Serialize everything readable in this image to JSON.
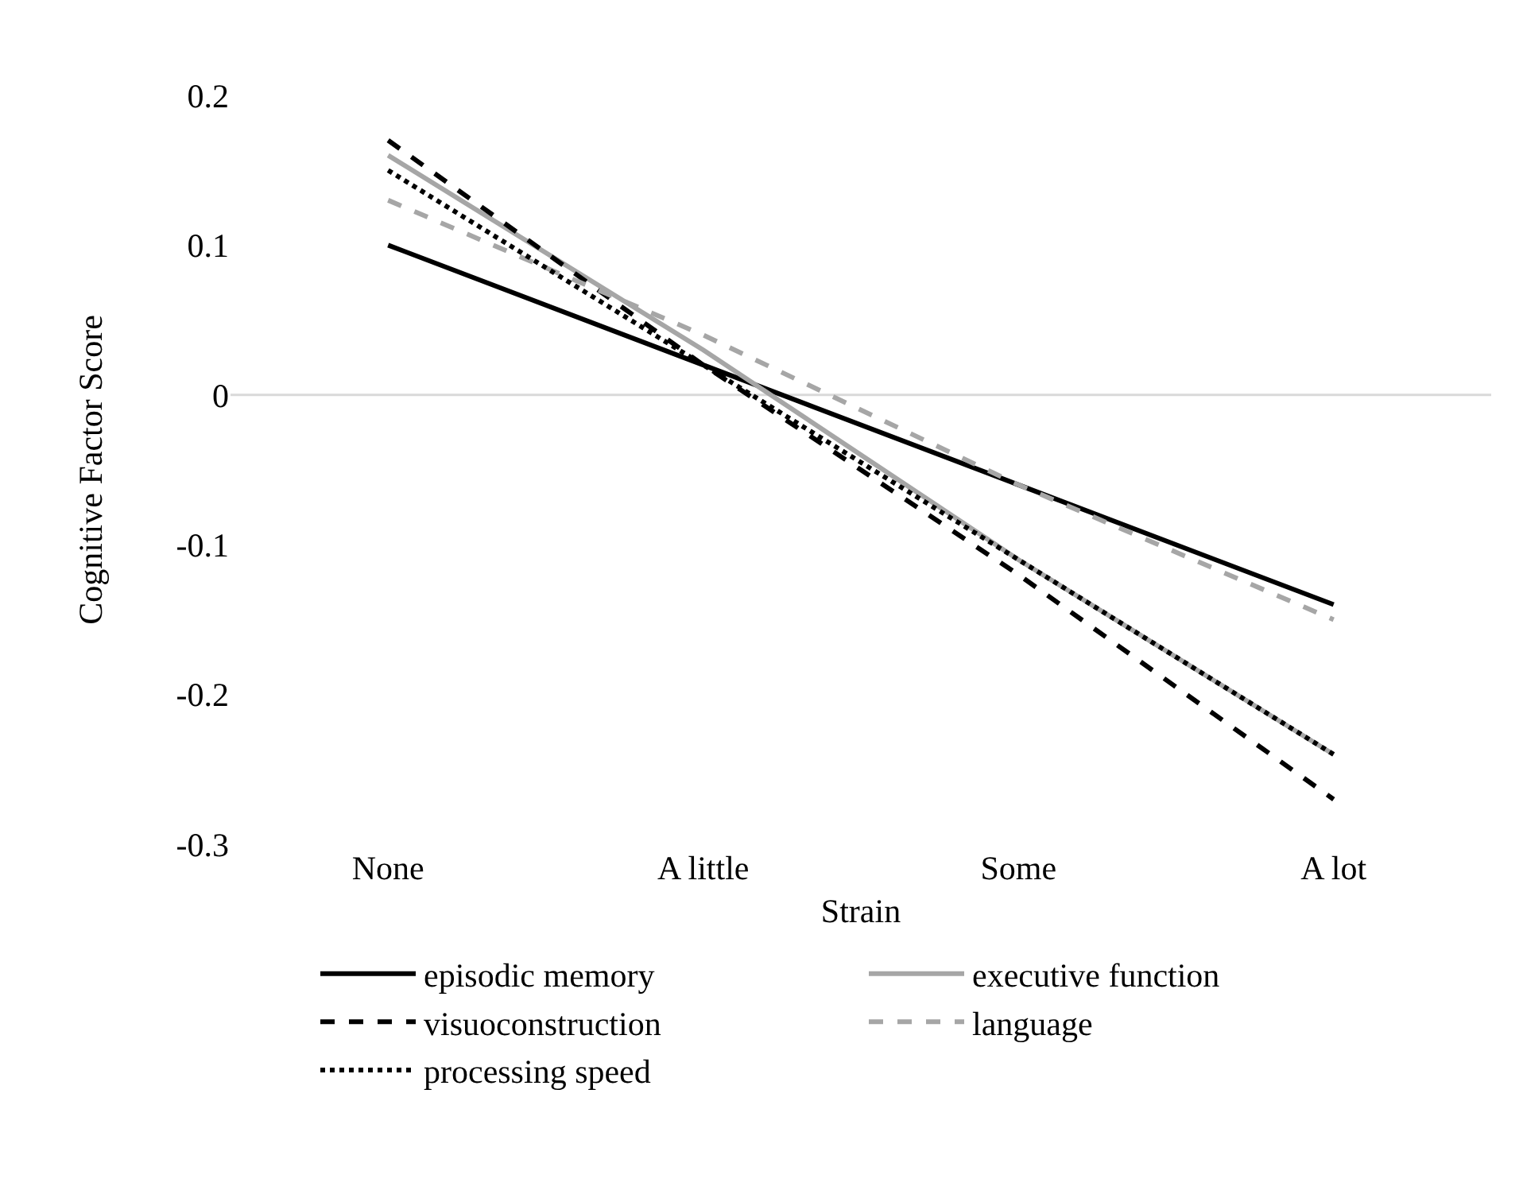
{
  "chart_data": {
    "type": "line",
    "xlabel": "Strain",
    "ylabel": "Cognitive Factor Score",
    "categories": [
      "None",
      "A little",
      "Some",
      "A lot"
    ],
    "series": [
      {
        "name": "episodic memory",
        "color": "#000000",
        "line_style": "solid",
        "values": [
          0.1,
          0.02,
          -0.06,
          -0.14
        ]
      },
      {
        "name": "executive function",
        "color": "#a6a6a6",
        "line_style": "solid",
        "values": [
          0.16,
          0.03,
          -0.11,
          -0.24
        ]
      },
      {
        "name": "visuoconstruction",
        "color": "#000000",
        "line_style": "dashed",
        "values": [
          0.17,
          0.02,
          -0.12,
          -0.27
        ]
      },
      {
        "name": "language",
        "color": "#a6a6a6",
        "line_style": "dashed",
        "values": [
          0.13,
          0.04,
          -0.06,
          -0.15
        ]
      },
      {
        "name": "processing speed",
        "color": "#000000",
        "line_style": "dotted",
        "values": [
          0.15,
          0.02,
          -0.11,
          -0.24
        ]
      }
    ],
    "ylim": [
      -0.3,
      0.2
    ],
    "yticks": [
      -0.3,
      -0.2,
      -0.1,
      0,
      0.1,
      0.2
    ],
    "grid": false,
    "legend": "bottom",
    "marker": "none",
    "ref_lines": [
      {
        "axis": "y",
        "value": 0,
        "color": "#d9d9d9"
      }
    ]
  }
}
